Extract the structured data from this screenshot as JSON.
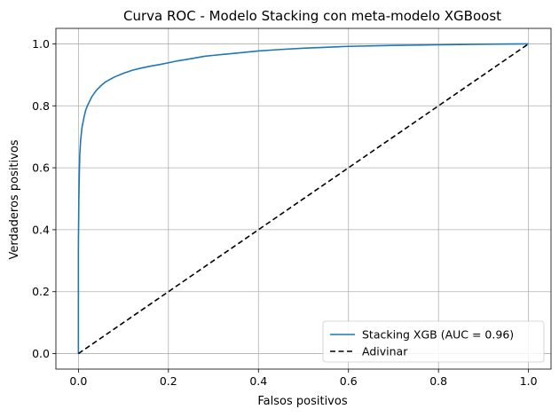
{
  "chart_data": {
    "type": "line",
    "title": "Curva ROC - Modelo Stacking con meta-modelo XGBoost",
    "xlabel": "Falsos positivos",
    "ylabel": "Verdaderos positivos",
    "xlim": [
      -0.05,
      1.05
    ],
    "ylim": [
      -0.05,
      1.05
    ],
    "xticks": [
      0.0,
      0.2,
      0.4,
      0.6,
      0.8,
      1.0
    ],
    "xtick_labels": [
      "0.0",
      "0.2",
      "0.4",
      "0.6",
      "0.8",
      "1.0"
    ],
    "yticks": [
      0.0,
      0.2,
      0.4,
      0.6,
      0.8,
      1.0
    ],
    "ytick_labels": [
      "0.0",
      "0.2",
      "0.4",
      "0.6",
      "0.8",
      "1.0"
    ],
    "grid": true,
    "legend_position": "lower-right",
    "series": [
      {
        "name": "Stacking XGB (AUC = 0.96)",
        "color": "#1f77b4",
        "style": "solid",
        "x": [
          0.0,
          0.0,
          0.001,
          0.002,
          0.003,
          0.005,
          0.008,
          0.012,
          0.016,
          0.02,
          0.025,
          0.03,
          0.04,
          0.05,
          0.06,
          0.07,
          0.08,
          0.1,
          0.12,
          0.14,
          0.16,
          0.18,
          0.2,
          0.22,
          0.25,
          0.28,
          0.3,
          0.35,
          0.4,
          0.45,
          0.5,
          0.55,
          0.6,
          0.7,
          0.8,
          0.9,
          1.0
        ],
        "y": [
          0.0,
          0.35,
          0.5,
          0.58,
          0.64,
          0.69,
          0.73,
          0.76,
          0.785,
          0.8,
          0.815,
          0.83,
          0.85,
          0.865,
          0.877,
          0.885,
          0.893,
          0.905,
          0.915,
          0.922,
          0.928,
          0.933,
          0.939,
          0.945,
          0.952,
          0.96,
          0.963,
          0.97,
          0.977,
          0.982,
          0.986,
          0.989,
          0.992,
          0.995,
          0.997,
          0.999,
          1.0
        ]
      },
      {
        "name": "Adivinar",
        "color": "#000000",
        "style": "dashed",
        "x": [
          0.0,
          1.0
        ],
        "y": [
          0.0,
          1.0
        ]
      }
    ]
  }
}
